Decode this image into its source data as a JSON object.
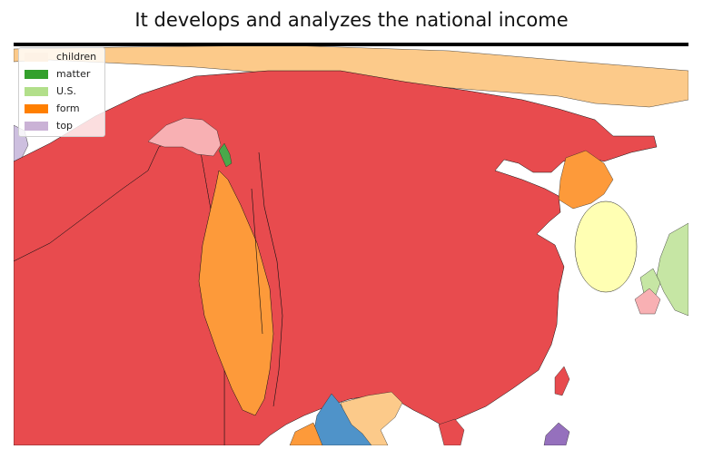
{
  "title": "It develops and analyzes the national income",
  "legend": {
    "items": [
      {
        "label": "children",
        "color": "#fdf2e6"
      },
      {
        "label": "matter",
        "color": "#33a02c"
      },
      {
        "label": "U.S.",
        "color": "#b2df8a"
      },
      {
        "label": "form",
        "color": "#ff7f00"
      },
      {
        "label": "top",
        "color": "#cab2d6"
      }
    ]
  },
  "colors": {
    "red": "#e84b4e",
    "orange": "#fd9a3a",
    "peach": "#fcca8a",
    "pink": "#f8b0b3",
    "light_green": "#c6e6a4",
    "yellow": "#ffffb3",
    "blue": "#4f93c9",
    "purple": "#9570bd",
    "lavender": "#cdbfdf",
    "green": "#4aa84a"
  }
}
